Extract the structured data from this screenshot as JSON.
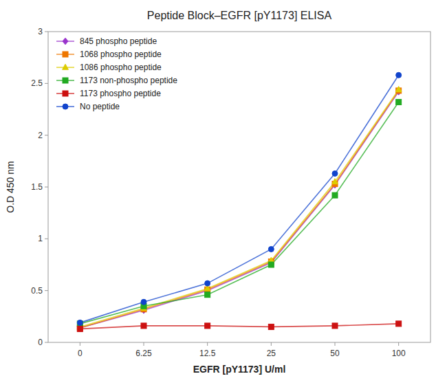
{
  "chart_data": {
    "type": "line",
    "title": "Peptide Block–EGFR [pY1173] ELISA",
    "x_label": "EGFR [pY1173] U/ml",
    "y_label": "O.D 450 nm",
    "categories": [
      "0",
      "6.25",
      "12.5",
      "25",
      "50",
      "100"
    ],
    "ylim": [
      0,
      3.0
    ],
    "yticks": [
      0,
      0.5,
      1,
      1.5,
      2,
      2.5,
      3
    ],
    "grid": false,
    "legend": "upper left",
    "series": [
      {
        "name": "845 phospho peptide",
        "color": "#9933cc",
        "marker": "diamond",
        "values": [
          0.14,
          0.31,
          0.5,
          0.77,
          1.52,
          2.42
        ]
      },
      {
        "name": "1068 phospho peptide",
        "color": "#ee7700",
        "marker": "square",
        "values": [
          0.14,
          0.32,
          0.51,
          0.78,
          1.53,
          2.43
        ]
      },
      {
        "name": "1086 phospho peptide",
        "color": "#ddcc00",
        "marker": "triangle",
        "values": [
          0.15,
          0.33,
          0.52,
          0.79,
          1.55,
          2.44
        ]
      },
      {
        "name": "1173 non-phospho peptide",
        "color": "#22aa22",
        "marker": "square",
        "values": [
          0.18,
          0.35,
          0.46,
          0.75,
          1.42,
          2.32
        ]
      },
      {
        "name": "1173 phospho peptide",
        "color": "#cc1111",
        "marker": "square",
        "values": [
          0.13,
          0.16,
          0.16,
          0.15,
          0.16,
          0.18
        ]
      },
      {
        "name": "No peptide",
        "color": "#1144cc",
        "marker": "circle",
        "values": [
          0.19,
          0.39,
          0.57,
          0.9,
          1.63,
          2.58
        ]
      }
    ]
  }
}
